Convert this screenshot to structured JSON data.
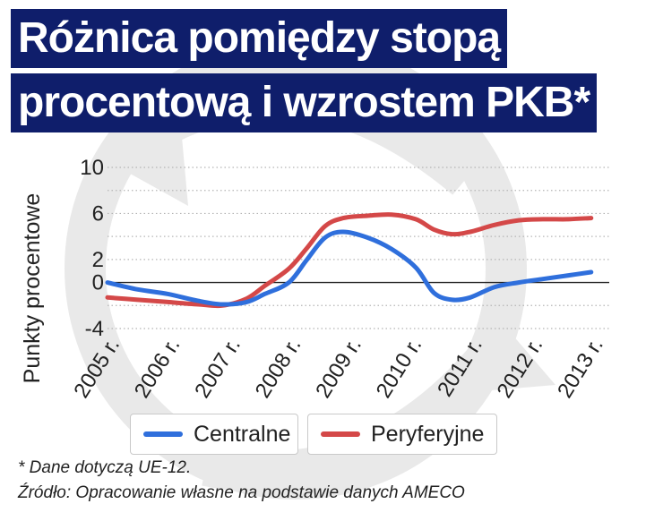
{
  "title_lines": [
    "Różnica pomiędzy stopą",
    "procentową i wzrostem PKB*"
  ],
  "colors": {
    "title_bg": "#0f1e6b",
    "centralne": "#2f6fdc",
    "peryferyjne": "#d44848",
    "zero_line": "#222222",
    "grid": "#b5b5b5"
  },
  "chart_data": {
    "type": "line",
    "ylabel": "Punkty procentowe",
    "xlabel": "",
    "yticks": [
      10,
      6,
      2,
      0,
      -4
    ],
    "ylim": [
      -4,
      10
    ],
    "xticks": [
      "2005 r.",
      "2006 r.",
      "2007 r.",
      "2008 r.",
      "2009 r.",
      "2010 r.",
      "2011 r.",
      "2012 r.",
      "2013 r."
    ],
    "xlim": [
      2005,
      2013.3
    ],
    "grid": "horizontal dotted",
    "legend_position": "bottom",
    "series": [
      {
        "name": "Centralne",
        "points": [
          [
            2005.0,
            0.0
          ],
          [
            2005.5,
            -0.6
          ],
          [
            2006.0,
            -1.0
          ],
          [
            2006.5,
            -1.6
          ],
          [
            2006.9,
            -1.9
          ],
          [
            2007.3,
            -1.7
          ],
          [
            2007.6,
            -1.0
          ],
          [
            2008.0,
            0.0
          ],
          [
            2008.3,
            2.0
          ],
          [
            2008.6,
            3.9
          ],
          [
            2008.9,
            4.4
          ],
          [
            2009.3,
            3.9
          ],
          [
            2009.7,
            2.9
          ],
          [
            2010.1,
            1.3
          ],
          [
            2010.4,
            -0.9
          ],
          [
            2010.7,
            -1.5
          ],
          [
            2011.0,
            -1.3
          ],
          [
            2011.4,
            -0.4
          ],
          [
            2011.8,
            0.0
          ],
          [
            2012.2,
            0.3
          ],
          [
            2012.6,
            0.6
          ],
          [
            2013.0,
            0.9
          ]
        ]
      },
      {
        "name": "Peryferyjne",
        "points": [
          [
            2005.0,
            -1.3
          ],
          [
            2005.5,
            -1.5
          ],
          [
            2006.0,
            -1.7
          ],
          [
            2006.5,
            -1.9
          ],
          [
            2006.9,
            -2.0
          ],
          [
            2007.3,
            -1.4
          ],
          [
            2007.6,
            -0.3
          ],
          [
            2008.0,
            1.2
          ],
          [
            2008.3,
            3.0
          ],
          [
            2008.6,
            4.9
          ],
          [
            2008.9,
            5.6
          ],
          [
            2009.3,
            5.8
          ],
          [
            2009.7,
            5.9
          ],
          [
            2010.1,
            5.5
          ],
          [
            2010.4,
            4.6
          ],
          [
            2010.7,
            4.2
          ],
          [
            2011.0,
            4.4
          ],
          [
            2011.4,
            5.0
          ],
          [
            2011.8,
            5.4
          ],
          [
            2012.2,
            5.5
          ],
          [
            2012.6,
            5.5
          ],
          [
            2013.0,
            5.6
          ]
        ]
      }
    ]
  },
  "footnotes": [
    "* Dane dotyczą UE-12.",
    "Źródło: Opracowanie własne na podstawie danych AMECO"
  ]
}
